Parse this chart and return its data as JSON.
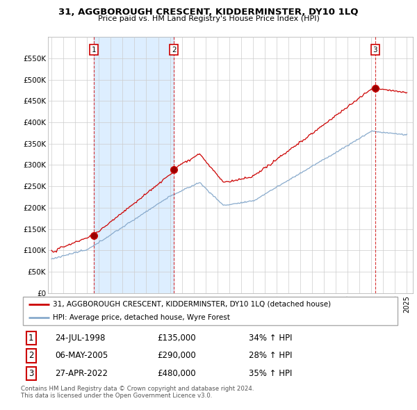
{
  "title": "31, AGGBOROUGH CRESCENT, KIDDERMINSTER, DY10 1LQ",
  "subtitle": "Price paid vs. HM Land Registry's House Price Index (HPI)",
  "legend_line1": "31, AGGBOROUGH CRESCENT, KIDDERMINSTER, DY10 1LQ (detached house)",
  "legend_line2": "HPI: Average price, detached house, Wyre Forest",
  "red_line_color": "#cc0000",
  "blue_line_color": "#88aacc",
  "shade_color": "#ddeeff",
  "background_color": "#ffffff",
  "grid_color": "#cccccc",
  "ylim": [
    0,
    600000
  ],
  "yticks": [
    0,
    50000,
    100000,
    150000,
    200000,
    250000,
    300000,
    350000,
    400000,
    450000,
    500000,
    550000
  ],
  "ytick_labels": [
    "£0",
    "£50K",
    "£100K",
    "£150K",
    "£200K",
    "£250K",
    "£300K",
    "£350K",
    "£400K",
    "£450K",
    "£500K",
    "£550K"
  ],
  "sale_dates_num": [
    1998.56,
    2005.34,
    2022.32
  ],
  "sale_prices": [
    135000,
    290000,
    480000
  ],
  "sale_labels": [
    "1",
    "2",
    "3"
  ],
  "sale1_date": "24-JUL-1998",
  "sale2_date": "06-MAY-2005",
  "sale3_date": "27-APR-2022",
  "sale1_price": "£135,000",
  "sale2_price": "£290,000",
  "sale3_price": "£480,000",
  "sale1_hpi": "34% ↑ HPI",
  "sale2_hpi": "28% ↑ HPI",
  "sale3_hpi": "35% ↑ HPI",
  "footer1": "Contains HM Land Registry data © Crown copyright and database right 2024.",
  "footer2": "This data is licensed under the Open Government Licence v3.0."
}
